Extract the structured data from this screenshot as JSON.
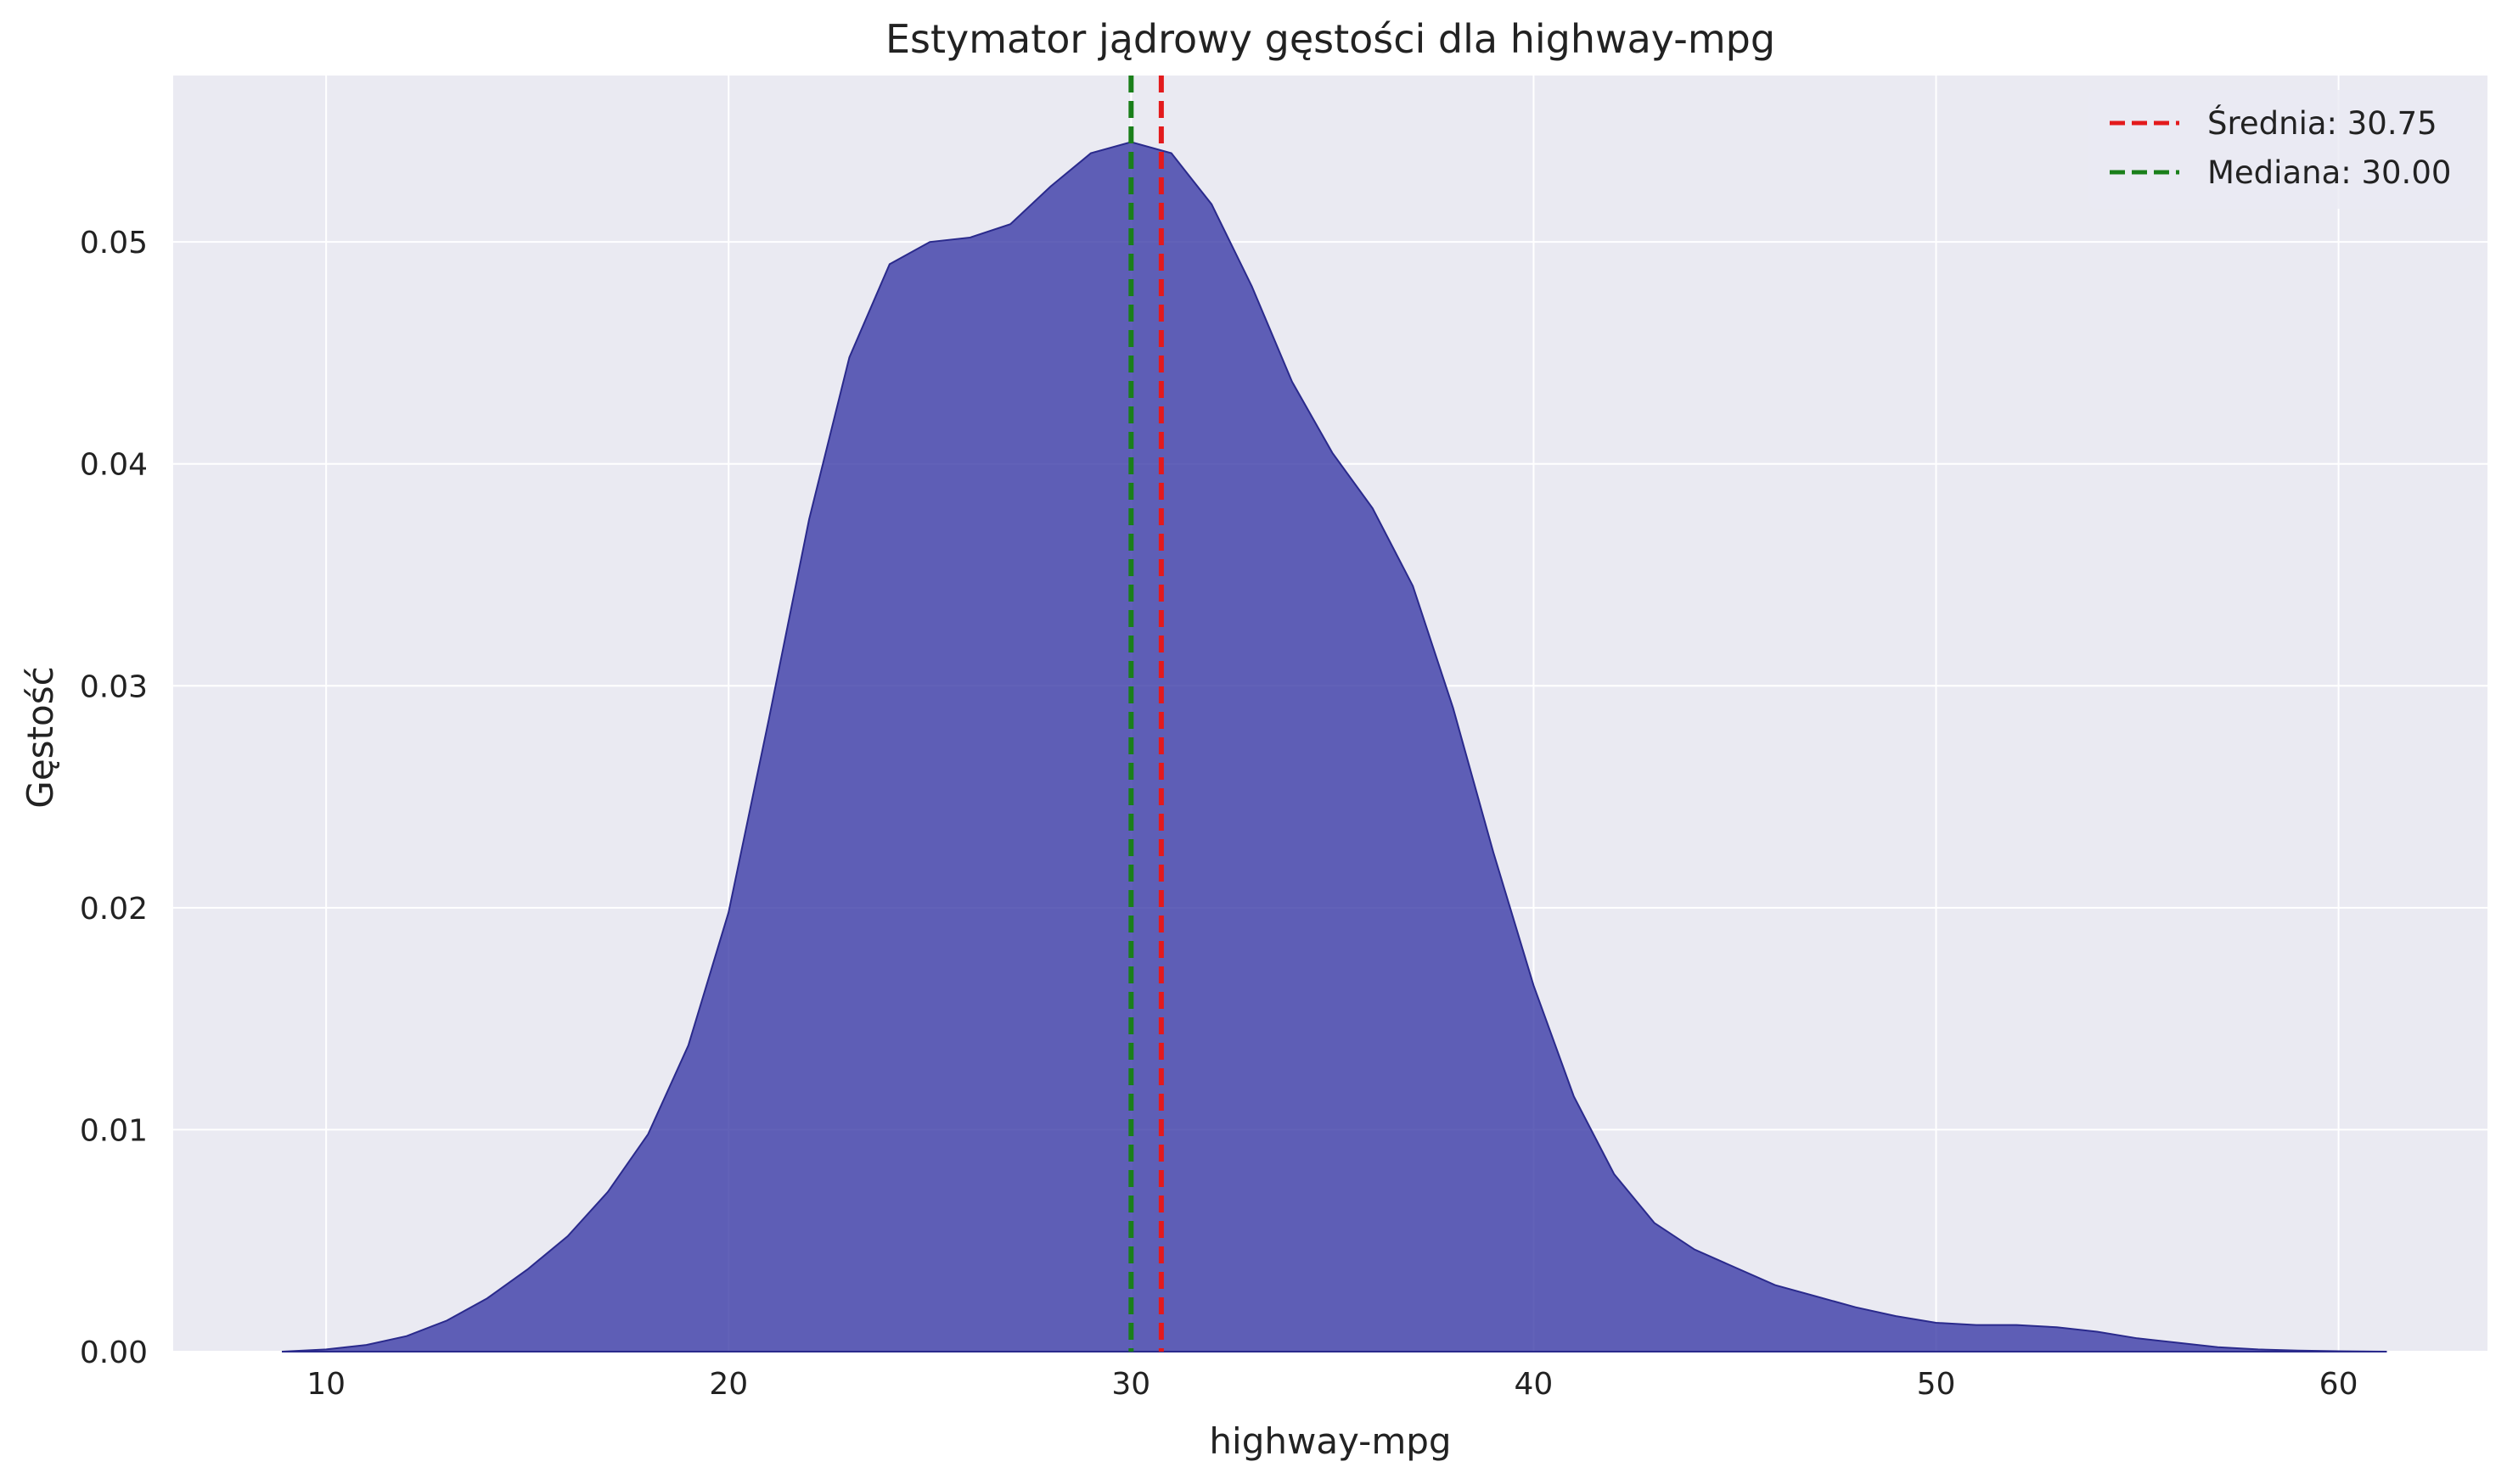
{
  "chart_data": {
    "type": "area",
    "title": "Estymator jądrowy gęstości dla highway-mpg",
    "xlabel": "highway-mpg",
    "ylabel": "Gęstość",
    "xlim": [
      6.2,
      63.7
    ],
    "ylim": [
      0.0,
      0.0575
    ],
    "xticks": [
      10,
      20,
      30,
      40,
      50,
      60
    ],
    "xtick_labels": [
      "10",
      "20",
      "30",
      "40",
      "50",
      "60"
    ],
    "yticks": [
      0.0,
      0.01,
      0.02,
      0.03,
      0.04,
      0.05
    ],
    "ytick_labels": [
      "0.00",
      "0.01",
      "0.02",
      "0.03",
      "0.04",
      "0.05"
    ],
    "grid": true,
    "legend_position": "top-right",
    "series": [
      {
        "type": "area",
        "color": "#3f3fa8",
        "x": [
          8.9,
          10,
          11,
          12,
          13,
          14,
          15,
          16,
          17,
          18,
          19,
          20,
          21,
          22,
          23,
          24,
          25,
          26,
          27,
          28,
          29,
          30,
          31,
          32,
          33,
          34,
          35,
          36,
          37,
          38,
          39,
          40,
          41,
          42,
          43,
          44,
          45,
          46,
          47,
          48,
          49,
          50,
          51,
          52,
          53,
          54,
          55,
          56,
          57,
          58,
          59,
          60,
          61.2
        ],
        "y": [
          0.0,
          0.0001,
          0.0003,
          0.0007,
          0.0014,
          0.0024,
          0.0037,
          0.0052,
          0.0072,
          0.0098,
          0.0138,
          0.0198,
          0.0285,
          0.0375,
          0.0448,
          0.049,
          0.05,
          0.0502,
          0.0508,
          0.0525,
          0.054,
          0.0545,
          0.054,
          0.0517,
          0.048,
          0.0437,
          0.0405,
          0.038,
          0.0345,
          0.029,
          0.0225,
          0.0165,
          0.0115,
          0.008,
          0.0058,
          0.0046,
          0.0038,
          0.003,
          0.0025,
          0.002,
          0.0016,
          0.0013,
          0.0012,
          0.0012,
          0.0011,
          0.0009,
          0.0006,
          0.0004,
          0.0002,
          0.0001,
          5e-05,
          2e-05,
          0.0
        ]
      }
    ],
    "reference_lines": [
      {
        "label": "Średnia: 30.75",
        "x": 30.75,
        "color": "#e31a1c"
      },
      {
        "label": "Mediana: 30.00",
        "x": 30.0,
        "color": "#1a7f1a"
      }
    ]
  }
}
